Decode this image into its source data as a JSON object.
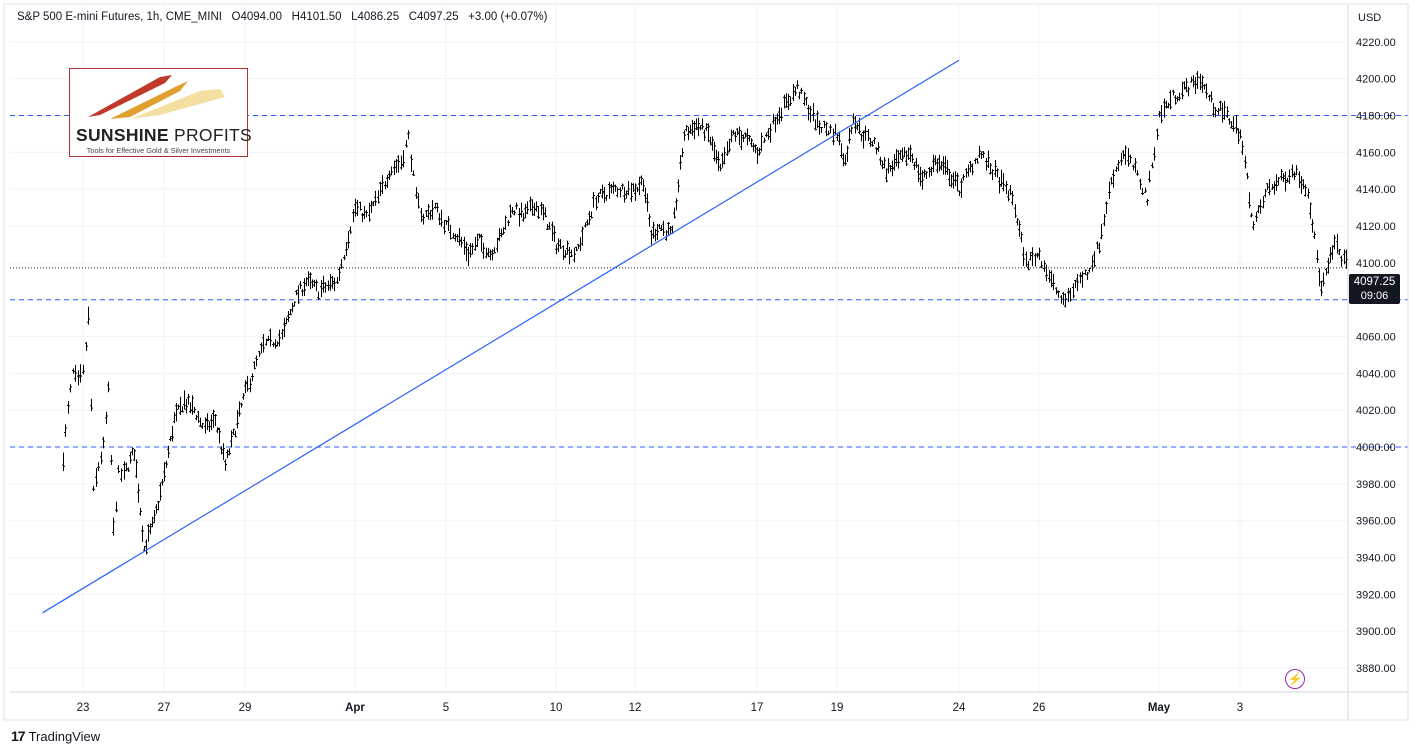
{
  "legend": {
    "symbol": "S&P 500 E-mini Futures, 1h, CME_MINI",
    "open": "O4094.00",
    "high": "H4101.50",
    "low": "L4086.25",
    "close": "C4097.25",
    "change": "+3.00 (+0.07%)"
  },
  "logo": {
    "name_bold": "SUNSHINE",
    "name_thin": " PROFITS",
    "tagline": "Tools for Effective Gold & Silver Investments"
  },
  "footer": {
    "brand": "TradingView",
    "icon": "tradingview-logo-icon"
  },
  "price_badge": {
    "price": "4097.25",
    "countdown": "09:06"
  },
  "alert_icon": "lightning-bolt-icon",
  "colors": {
    "trendline": "#2962ff",
    "hline": "#2962ff",
    "bars": "#000000",
    "badge_bg": "#131722",
    "alert": "#9c27b0"
  },
  "chart_data": {
    "type": "bar",
    "title": "S&P 500 E-mini Futures, 1h, CME_MINI",
    "currency_label": "USD",
    "x_ticks": [
      "23",
      "27",
      "29",
      "Apr",
      "5",
      "10",
      "12",
      "17",
      "19",
      "24",
      "26",
      "May",
      "3"
    ],
    "y_ticks": [
      3880,
      3900,
      3920,
      3940,
      3960,
      3980,
      4000,
      4020,
      4040,
      4060,
      4080,
      4100,
      4120,
      4140,
      4160,
      4180,
      4200,
      4220
    ],
    "ylim": [
      3867,
      4240
    ],
    "grid": true,
    "price_path": [
      {
        "x": "Mar 22",
        "y": 3995
      },
      {
        "x": "Mar 22",
        "y": 4020
      },
      {
        "x": "Mar 22",
        "y": 4040
      },
      {
        "x": "Mar 22",
        "y": 4035
      },
      {
        "x": "Mar 23",
        "y": 4040
      },
      {
        "x": "Mar 23",
        "y": 4070
      },
      {
        "x": "Mar 23",
        "y": 3975
      },
      {
        "x": "Mar 23",
        "y": 3990
      },
      {
        "x": "Mar 24",
        "y": 4000
      },
      {
        "x": "Mar 24",
        "y": 4030
      },
      {
        "x": "Mar 24",
        "y": 3955
      },
      {
        "x": "Mar 24",
        "y": 3985
      },
      {
        "x": "Mar 25",
        "y": 3985
      },
      {
        "x": "Mar 25",
        "y": 3998
      },
      {
        "x": "Mar 26",
        "y": 3945
      },
      {
        "x": "Mar 26",
        "y": 3960
      },
      {
        "x": "Mar 27",
        "y": 3985
      },
      {
        "x": "Mar 27",
        "y": 4015
      },
      {
        "x": "Mar 27",
        "y": 4025
      },
      {
        "x": "Mar 27",
        "y": 4020
      },
      {
        "x": "Mar 28",
        "y": 4010
      },
      {
        "x": "Mar 28",
        "y": 4015
      },
      {
        "x": "Mar 28",
        "y": 3990
      },
      {
        "x": "Mar 28",
        "y": 4010
      },
      {
        "x": "Mar 29",
        "y": 4030
      },
      {
        "x": "Mar 29",
        "y": 4055
      },
      {
        "x": "Mar 30",
        "y": 4060
      },
      {
        "x": "Mar 30",
        "y": 4080
      },
      {
        "x": "Mar 30",
        "y": 4090
      },
      {
        "x": "Mar 31",
        "y": 4085
      },
      {
        "x": "Mar 31",
        "y": 4090
      },
      {
        "x": "Apr 1",
        "y": 4130
      },
      {
        "x": "Apr 1",
        "y": 4125
      },
      {
        "x": "Apr 2",
        "y": 4135
      },
      {
        "x": "Apr 2",
        "y": 4150
      },
      {
        "x": "Apr 3",
        "y": 4155
      },
      {
        "x": "Apr 3",
        "y": 4168
      },
      {
        "x": "Apr 3",
        "y": 4135
      },
      {
        "x": "Apr 4",
        "y": 4125
      },
      {
        "x": "Apr 4",
        "y": 4130
      },
      {
        "x": "Apr 5",
        "y": 4120
      },
      {
        "x": "Apr 5",
        "y": 4115
      },
      {
        "x": "Apr 6",
        "y": 4105
      },
      {
        "x": "Apr 6",
        "y": 4112
      },
      {
        "x": "Apr 7",
        "y": 4105
      },
      {
        "x": "Apr 7",
        "y": 4115
      },
      {
        "x": "Apr 8",
        "y": 4130
      },
      {
        "x": "Apr 8",
        "y": 4125
      },
      {
        "x": "Apr 9",
        "y": 4132
      },
      {
        "x": "Apr 9",
        "y": 4125
      },
      {
        "x": "Apr 10",
        "y": 4110
      },
      {
        "x": "Apr 10",
        "y": 4105
      },
      {
        "x": "Apr 11",
        "y": 4135
      },
      {
        "x": "Apr 11",
        "y": 4140
      },
      {
        "x": "Apr 12",
        "y": 4140
      },
      {
        "x": "Apr 12",
        "y": 4145
      },
      {
        "x": "Apr 12",
        "y": 4115
      },
      {
        "x": "Apr 13",
        "y": 4120
      },
      {
        "x": "Apr 13",
        "y": 4115
      },
      {
        "x": "Apr 14",
        "y": 4170
      },
      {
        "x": "Apr 14",
        "y": 4175
      },
      {
        "x": "Apr 15",
        "y": 4170
      },
      {
        "x": "Apr 15",
        "y": 4150
      },
      {
        "x": "Apr 16",
        "y": 4170
      },
      {
        "x": "Apr 16",
        "y": 4168
      },
      {
        "x": "Apr 17",
        "y": 4160
      },
      {
        "x": "Apr 17",
        "y": 4180
      },
      {
        "x": "Apr 18",
        "y": 4195
      },
      {
        "x": "Apr 18",
        "y": 4175
      },
      {
        "x": "Apr 19",
        "y": 4170
      },
      {
        "x": "Apr 19",
        "y": 4155
      },
      {
        "x": "Apr 19",
        "y": 4180
      },
      {
        "x": "Apr 20",
        "y": 4170
      },
      {
        "x": "Apr 20",
        "y": 4165
      },
      {
        "x": "Apr 21",
        "y": 4150
      },
      {
        "x": "Apr 21",
        "y": 4155
      },
      {
        "x": "Apr 22",
        "y": 4160
      },
      {
        "x": "Apr 22",
        "y": 4145
      },
      {
        "x": "Apr 23",
        "y": 4155
      },
      {
        "x": "Apr 23",
        "y": 4150
      },
      {
        "x": "Apr 24",
        "y": 4140
      },
      {
        "x": "Apr 24",
        "y": 4160
      },
      {
        "x": "Apr 25",
        "y": 4145
      },
      {
        "x": "Apr 25",
        "y": 4135
      },
      {
        "x": "Apr 25",
        "y": 4100
      },
      {
        "x": "Apr 26",
        "y": 4105
      },
      {
        "x": "Apr 26",
        "y": 4090
      },
      {
        "x": "Apr 27",
        "y": 4078
      },
      {
        "x": "Apr 27",
        "y": 4088
      },
      {
        "x": "Apr 28",
        "y": 4095
      },
      {
        "x": "Apr 28",
        "y": 4110
      },
      {
        "x": "Apr 29",
        "y": 4145
      },
      {
        "x": "Apr 29",
        "y": 4160
      },
      {
        "x": "Apr 30",
        "y": 4150
      },
      {
        "x": "Apr 30",
        "y": 4135
      },
      {
        "x": "May 1",
        "y": 4180
      },
      {
        "x": "May 1",
        "y": 4190
      },
      {
        "x": "May 1",
        "y": 4195
      },
      {
        "x": "May 2",
        "y": 4200
      },
      {
        "x": "May 2",
        "y": 4185
      },
      {
        "x": "May 2",
        "y": 4180
      },
      {
        "x": "May 3",
        "y": 4170
      },
      {
        "x": "May 3",
        "y": 4120
      },
      {
        "x": "May 3",
        "y": 4140
      },
      {
        "x": "May 4",
        "y": 4145
      },
      {
        "x": "May 4",
        "y": 4150
      },
      {
        "x": "May 4",
        "y": 4140
      },
      {
        "x": "May 5",
        "y": 4085
      },
      {
        "x": "May 5",
        "y": 4110
      },
      {
        "x": "May 5",
        "y": 4097.25
      }
    ],
    "horizontal_lines": [
      4180,
      4080,
      4000
    ],
    "trendline": {
      "from": {
        "x": "Mar 21",
        "y": 3910
      },
      "to": {
        "x": "Apr 24",
        "y": 4210
      }
    },
    "last_price": 4097.25
  }
}
